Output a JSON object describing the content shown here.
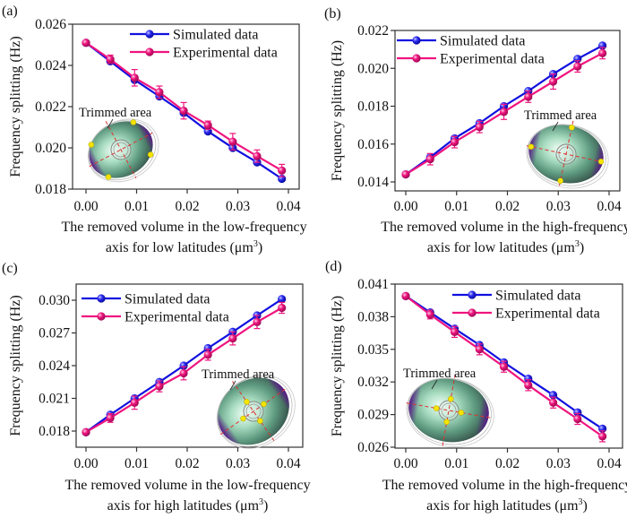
{
  "figure": {
    "legend": {
      "simulated": "Simulated data",
      "experimental": "Experimental data"
    },
    "colors": {
      "simulated": "#1010e0",
      "experimental": "#f0147e",
      "axis": "#333333"
    },
    "inset_label": "Trimmed area",
    "ylabel": "Frequency splitting (Hz)"
  },
  "chart_data": [
    {
      "panel": "(a)",
      "type": "line",
      "title": "",
      "xlabel_line1": "The removed volume in the low-frequency",
      "xlabel_line2": "axis for low latitudes (μm",
      "xlabel_sup": "3",
      "xlabel_tail": ")",
      "ylabel": "Frequency splitting (Hz)",
      "xlim": [
        -0.0025,
        0.042
      ],
      "ylim": [
        0.018,
        0.026
      ],
      "xticks": [
        0.0,
        0.01,
        0.02,
        0.03,
        0.04
      ],
      "xtick_labels": [
        "0.00",
        "0.01",
        "0.02",
        "0.03",
        "0.04"
      ],
      "yticks": [
        0.018,
        0.02,
        0.022,
        0.024,
        0.026
      ],
      "ytick_labels": [
        "0.018",
        "0.020",
        "0.022",
        "0.024",
        "0.026"
      ],
      "legend_position": "top-right",
      "inset_position": "bottom-left",
      "x": [
        0.0,
        0.0048,
        0.0096,
        0.0145,
        0.0193,
        0.0241,
        0.029,
        0.0338,
        0.0387
      ],
      "series": [
        {
          "name": "Simulated data",
          "values": [
            0.0251,
            0.0242,
            0.0233,
            0.0225,
            0.0217,
            0.0208,
            0.02,
            0.0193,
            0.0185
          ]
        },
        {
          "name": "Experimental data",
          "values": [
            0.0251,
            0.0243,
            0.0234,
            0.0227,
            0.0218,
            0.0211,
            0.0203,
            0.0196,
            0.0189
          ],
          "errors": [
            0.0001,
            0.0002,
            0.0004,
            0.0003,
            0.0004,
            0.0002,
            0.0004,
            0.0003,
            0.0003
          ]
        }
      ]
    },
    {
      "panel": "(b)",
      "type": "line",
      "title": "",
      "xlabel_line1": "The removed volume in the high-frequency",
      "xlabel_line2": "axis for low latitudes (μm",
      "xlabel_sup": "3",
      "xlabel_tail": ")",
      "ylabel": "Frequency splitting (Hz)",
      "xlim": [
        -0.0025,
        0.042
      ],
      "ylim": [
        0.0135,
        0.022
      ],
      "xticks": [
        0.0,
        0.01,
        0.02,
        0.03,
        0.04
      ],
      "xtick_labels": [
        "0.00",
        "0.01",
        "0.02",
        "0.03",
        "0.04"
      ],
      "yticks": [
        0.014,
        0.016,
        0.018,
        0.02,
        0.022
      ],
      "ytick_labels": [
        "0.014",
        "0.016",
        "0.018",
        "0.020",
        "0.022"
      ],
      "legend_position": "top-left",
      "inset_position": "bottom-right",
      "x": [
        0.0,
        0.0048,
        0.0096,
        0.0145,
        0.0193,
        0.0241,
        0.029,
        0.0338,
        0.0387
      ],
      "series": [
        {
          "name": "Simulated data",
          "values": [
            0.0144,
            0.0153,
            0.0163,
            0.0171,
            0.018,
            0.0188,
            0.0197,
            0.0205,
            0.0212
          ]
        },
        {
          "name": "Experimental data",
          "values": [
            0.0144,
            0.0152,
            0.0161,
            0.0169,
            0.0177,
            0.0185,
            0.0193,
            0.0201,
            0.0208
          ],
          "errors": [
            0.0001,
            0.0003,
            0.0003,
            0.0003,
            0.0004,
            0.0003,
            0.0004,
            0.0003,
            0.0003
          ]
        }
      ]
    },
    {
      "panel": "(c)",
      "type": "line",
      "title": "",
      "xlabel_line1": "The removed volume in the low-frequency",
      "xlabel_line2": "axis for high latitudes (μm",
      "xlabel_sup": "3",
      "xlabel_tail": ")",
      "ylabel": "Frequency splitting (Hz)",
      "xlim": [
        -0.0025,
        0.042
      ],
      "ylim": [
        0.0168,
        0.0318
      ],
      "xticks": [
        0.0,
        0.01,
        0.02,
        0.03,
        0.04
      ],
      "xtick_labels": [
        "0.00",
        "0.01",
        "0.02",
        "0.03",
        "0.04"
      ],
      "yticks": [
        0.018,
        0.021,
        0.024,
        0.027,
        0.03
      ],
      "ytick_labels": [
        "0.018",
        "0.021",
        "0.024",
        "0.027",
        "0.030"
      ],
      "legend_position": "top-left",
      "inset_position": "bottom-right",
      "x": [
        0.0,
        0.0048,
        0.0096,
        0.0145,
        0.0193,
        0.0241,
        0.029,
        0.0338,
        0.0387
      ],
      "series": [
        {
          "name": "Simulated data",
          "values": [
            0.0179,
            0.0195,
            0.021,
            0.0225,
            0.024,
            0.0256,
            0.0271,
            0.0286,
            0.0301
          ]
        },
        {
          "name": "Experimental data",
          "values": [
            0.0179,
            0.0192,
            0.0206,
            0.0221,
            0.0233,
            0.025,
            0.0265,
            0.028,
            0.0293
          ],
          "errors": [
            0.0001,
            0.0004,
            0.0006,
            0.0005,
            0.0006,
            0.0005,
            0.0006,
            0.0006,
            0.0005
          ]
        }
      ]
    },
    {
      "panel": "(d)",
      "type": "line",
      "title": "",
      "xlabel_line1": "The removed volume in the high-frequency",
      "xlabel_line2": "axis for high latitudes (μm",
      "xlabel_sup": "3",
      "xlabel_tail": ")",
      "ylabel": "Frequency splitting (Hz)",
      "xlim": [
        -0.0025,
        0.042
      ],
      "ylim": [
        0.026,
        0.041
      ],
      "xticks": [
        0.0,
        0.01,
        0.02,
        0.03,
        0.04
      ],
      "xtick_labels": [
        "0.00",
        "0.01",
        "0.02",
        "0.03",
        "0.04"
      ],
      "yticks": [
        0.026,
        0.029,
        0.032,
        0.035,
        0.038,
        0.041
      ],
      "ytick_labels": [
        "0.026",
        "0.029",
        "0.032",
        "0.035",
        "0.038",
        "0.041"
      ],
      "legend_position": "top-right",
      "inset_position": "bottom-left",
      "x": [
        0.0,
        0.0048,
        0.0096,
        0.0145,
        0.0193,
        0.0241,
        0.029,
        0.0338,
        0.0387
      ],
      "series": [
        {
          "name": "Simulated data",
          "values": [
            0.0399,
            0.0384,
            0.0369,
            0.0354,
            0.0338,
            0.0323,
            0.0308,
            0.0292,
            0.0277
          ]
        },
        {
          "name": "Experimental data",
          "values": [
            0.0399,
            0.0382,
            0.0366,
            0.035,
            0.0334,
            0.0317,
            0.0301,
            0.0286,
            0.027
          ],
          "errors": [
            0.0001,
            0.0004,
            0.0005,
            0.0005,
            0.0005,
            0.0005,
            0.0005,
            0.0005,
            0.0005
          ]
        }
      ]
    }
  ]
}
